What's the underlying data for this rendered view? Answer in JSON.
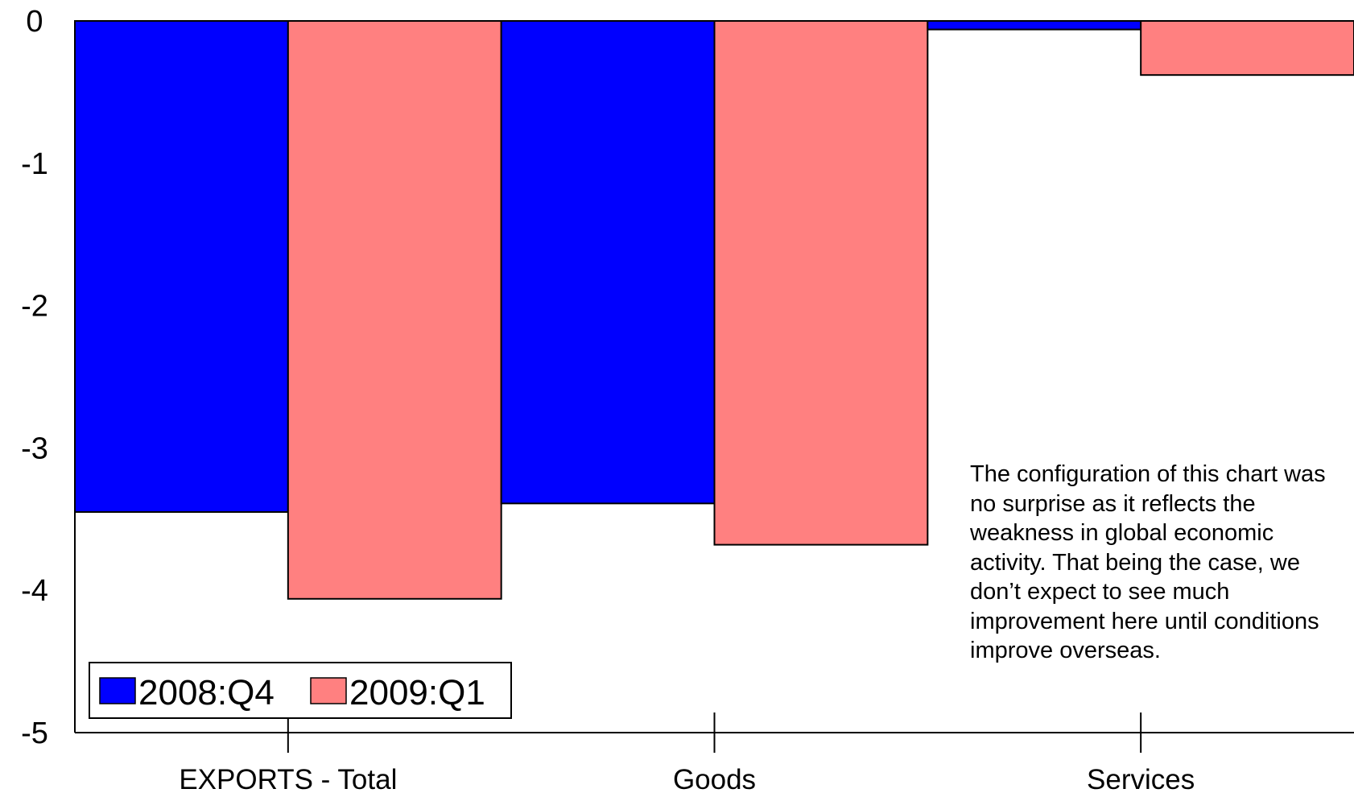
{
  "chart_data": {
    "type": "bar",
    "categories": [
      "EXPORTS - Total",
      "Goods",
      "Services"
    ],
    "series": [
      {
        "name": "2008:Q4",
        "values": [
          -3.45,
          -3.39,
          -0.06
        ],
        "color": "#0000ff"
      },
      {
        "name": "2009:Q1",
        "values": [
          -4.06,
          -3.68,
          -0.38
        ],
        "color": "#ff8080"
      }
    ],
    "y_ticks": [
      "0",
      "-1",
      "-2",
      "-3",
      "-4",
      "-5"
    ],
    "ylim": [
      -5,
      0
    ],
    "legend_position": "bottom-left",
    "annotation": "The configuration of this chart was no surprise as it reflects the weakness in global economic activity.  That being the case, we don’t expect to see much improvement here until conditions improve overseas."
  }
}
